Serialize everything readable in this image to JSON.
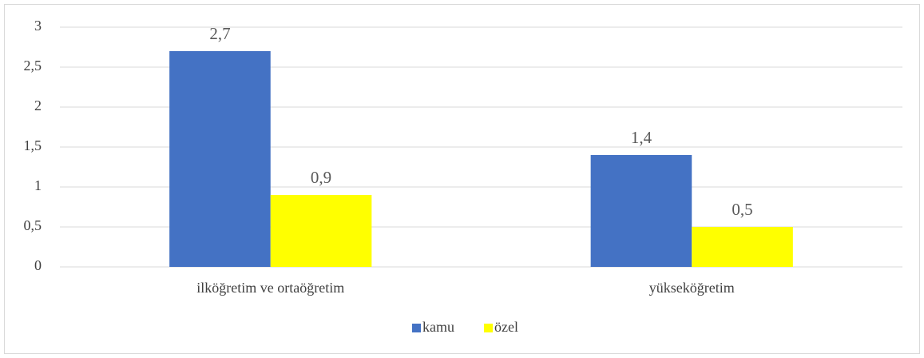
{
  "chart_data": {
    "type": "bar",
    "categories": [
      "ilköğretim ve ortaöğretim",
      "yükseköğretim"
    ],
    "series": [
      {
        "name": "kamu",
        "color": "#4472c4",
        "values": [
          2.7,
          1.4
        ],
        "value_labels": [
          "2,7",
          "1,4"
        ]
      },
      {
        "name": "özel",
        "color": "#ffff00",
        "values": [
          0.9,
          0.5
        ],
        "value_labels": [
          "0,9",
          "0,5"
        ]
      }
    ],
    "ylim": [
      0,
      3
    ],
    "yticks": [
      0,
      {
        "value": 0.5,
        "label": "0,5"
      },
      1,
      {
        "value": 1.5,
        "label": "1,5"
      },
      2,
      {
        "value": 2.5,
        "label": "2,5"
      },
      3
    ],
    "grid": true,
    "legend": "bottom"
  }
}
